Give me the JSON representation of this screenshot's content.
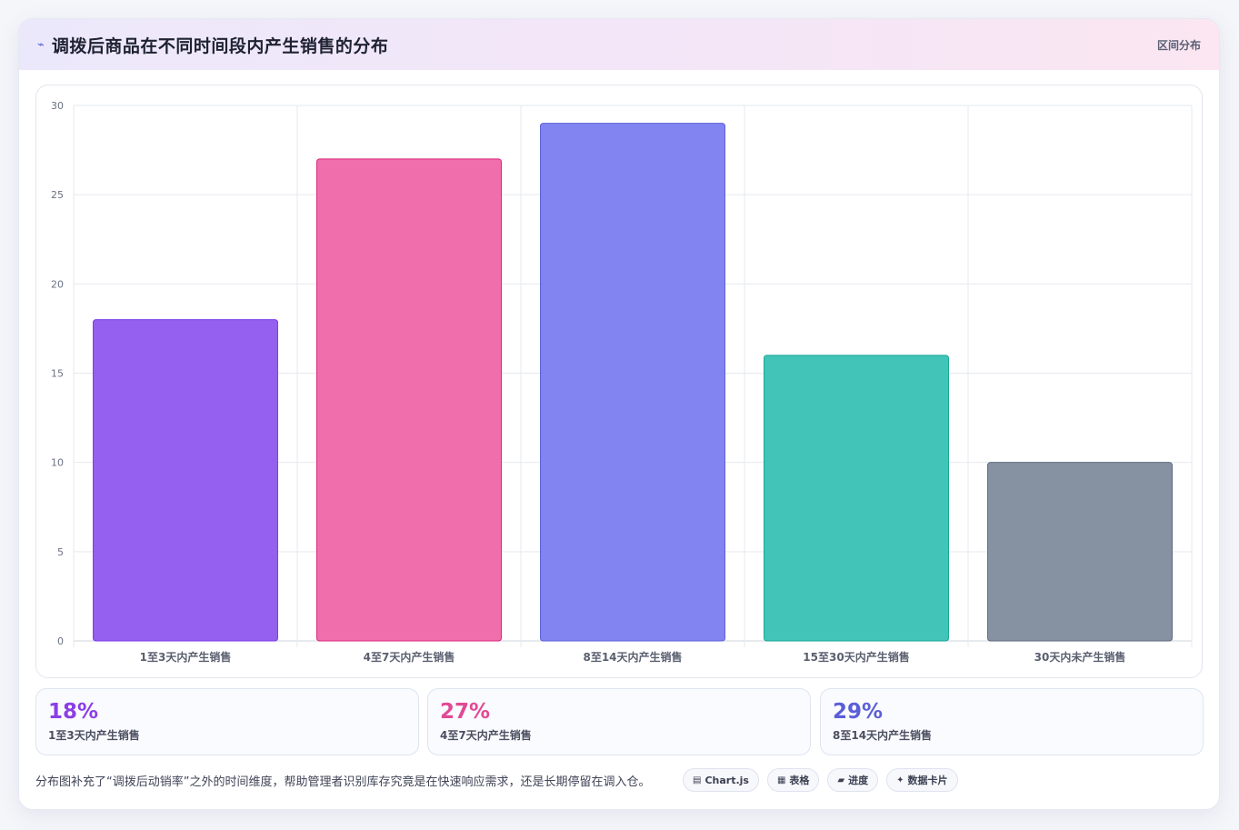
{
  "header": {
    "icon": "pulse-icon",
    "icon_glyph": "⌁",
    "title": "调拨后商品在不同时间段内产生销售的分布",
    "tag": "区间分布"
  },
  "chart_data": {
    "type": "bar",
    "categories": [
      "1至3天内产生销售",
      "4至7天内产生销售",
      "8至14天内产生销售",
      "15至30天内产生销售",
      "30天内未产生销售"
    ],
    "values": [
      18,
      27,
      29,
      16,
      10
    ],
    "colors": [
      "#9560ef",
      "#f06eac",
      "#8285f1",
      "#42c5b8",
      "#8692a2"
    ],
    "border_colors": [
      "#7c3aed",
      "#db2777",
      "#5b5fd6",
      "#14a896",
      "#5f6b7e"
    ],
    "ylim": [
      0,
      30
    ],
    "yticks": [
      "0",
      "5",
      "10",
      "15",
      "20",
      "25",
      "30"
    ],
    "grid": true,
    "legend": false,
    "title": "",
    "xlabel": "",
    "ylabel": ""
  },
  "stats": [
    {
      "value": "18%",
      "label": "1至3天内产生销售",
      "color": "#8b3fe6"
    },
    {
      "value": "27%",
      "label": "4至7天内产生销售",
      "color": "#e04a95"
    },
    {
      "value": "29%",
      "label": "8至14天内产生销售",
      "color": "#5b5fd6"
    }
  ],
  "footer": {
    "note": "分布图补充了“调拨后动销率”之外的时间维度，帮助管理者识别库存究竟是在快速响应需求，还是长期停留在调入仓。",
    "chips": [
      {
        "icon": "chart-icon",
        "glyph": "▤",
        "label": "Chart.js"
      },
      {
        "icon": "table-icon",
        "glyph": "▦",
        "label": "表格"
      },
      {
        "icon": "progress-icon",
        "glyph": "▰",
        "label": "进度"
      },
      {
        "icon": "sparkle-icon",
        "glyph": "✦",
        "label": "数据卡片"
      }
    ]
  }
}
